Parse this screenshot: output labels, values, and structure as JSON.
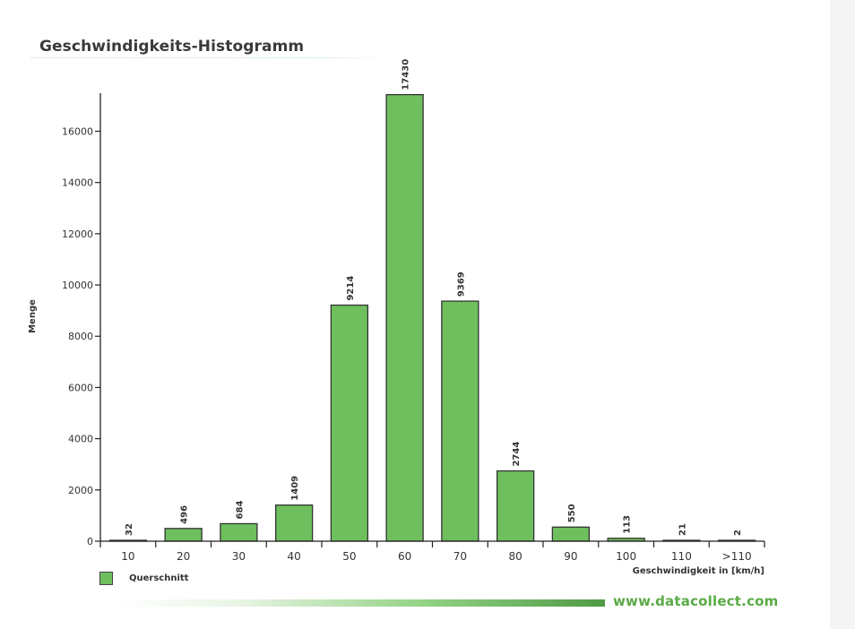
{
  "page": {
    "title": "Geschwindigkeits-Histogramm",
    "footer_url": "www.datacollect.com"
  },
  "colors": {
    "bar_fill": "#6fbf5f",
    "bar_stroke": "#333333",
    "footer_green": "#5aaa46"
  },
  "chart_data": {
    "type": "bar",
    "title": "Geschwindigkeits-Histogramm",
    "xlabel": "Geschwindigkeit in [km/h]",
    "ylabel": "Menge",
    "categories": [
      "10",
      "20",
      "30",
      "40",
      "50",
      "60",
      "70",
      "80",
      "90",
      "100",
      "110",
      ">110"
    ],
    "series": [
      {
        "name": "Querschnitt",
        "values": [
          32,
          496,
          684,
          1409,
          9214,
          17430,
          9369,
          2744,
          550,
          113,
          21,
          2
        ]
      }
    ],
    "yticks": [
      0,
      2000,
      4000,
      6000,
      8000,
      10000,
      12000,
      14000,
      16000
    ],
    "ylim": [
      0,
      17600
    ],
    "grid": false,
    "legend_position": "bottom-left",
    "data_labels": true
  }
}
